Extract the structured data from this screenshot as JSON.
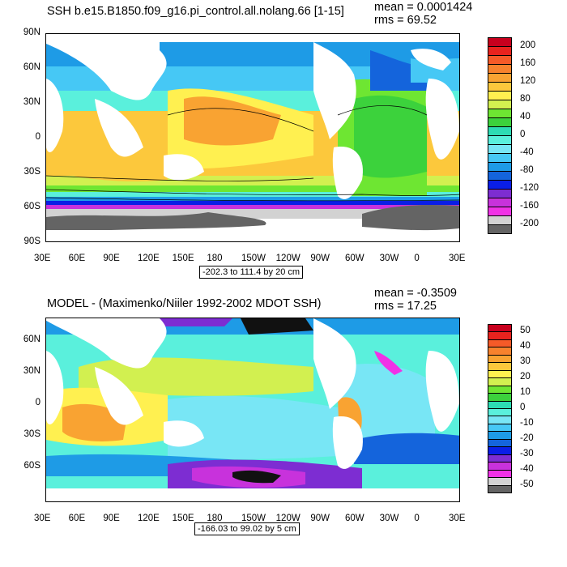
{
  "top": {
    "title": "SSH b.e15.B1850.f09_g16.pi_control.all.nolang.66 [1-15]",
    "mean": "mean = 0.0001424",
    "rms": "rms = 69.52",
    "range_label": "-202.3 to 111.4 by 20 cm",
    "lat_ticks": [
      "90N",
      "60N",
      "30N",
      "0",
      "30S",
      "60S",
      "90S"
    ],
    "lon_ticks": [
      "30E",
      "60E",
      "90E",
      "120E",
      "150E",
      "180",
      "150W",
      "120W",
      "90W",
      "60W",
      "30W",
      "0",
      "30E"
    ],
    "colorbar_labels": [
      "200",
      "160",
      "120",
      "80",
      "40",
      "0",
      "-40",
      "-80",
      "-120",
      "-160",
      "-200"
    ],
    "colors": [
      "#c8001e",
      "#e8231e",
      "#f55a28",
      "#f7822d",
      "#f9a332",
      "#fcc83c",
      "#fff050",
      "#d2f050",
      "#6ee632",
      "#3cd23c",
      "#2ddcb4",
      "#5af0dc",
      "#78e6f5",
      "#46c8f5",
      "#1e9be6",
      "#1464dc",
      "#0a1ee6",
      "#7d2dd2",
      "#c832dc",
      "#f032e6",
      "#d2d2d2",
      "#646464"
    ]
  },
  "bottom": {
    "title": "MODEL - (Maximenko/Niiler 1992-2002 MDOT SSH)",
    "mean": "mean = -0.3509",
    "rms": "rms = 17.25",
    "range_label": "-166.03 to 99.02 by 5 cm",
    "lat_ticks": [
      "60N",
      "30N",
      "0",
      "30S",
      "60S"
    ],
    "lon_ticks": [
      "30E",
      "60E",
      "90E",
      "120E",
      "150E",
      "180",
      "150W",
      "120W",
      "90W",
      "60W",
      "30W",
      "0",
      "30E"
    ],
    "colorbar_labels": [
      "50",
      "40",
      "30",
      "20",
      "10",
      "0",
      "-10",
      "-20",
      "-30",
      "-40",
      "-50"
    ],
    "colors": [
      "#c8001e",
      "#e8231e",
      "#f55a28",
      "#f7822d",
      "#f9a332",
      "#fcc83c",
      "#fff050",
      "#d2f050",
      "#6ee632",
      "#3cd23c",
      "#2ddcb4",
      "#5af0dc",
      "#78e6f5",
      "#46c8f5",
      "#1e9be6",
      "#1464dc",
      "#0a1ee6",
      "#7d2dd2",
      "#c832dc",
      "#f032e6",
      "#d2d2d2",
      "#646464"
    ]
  }
}
